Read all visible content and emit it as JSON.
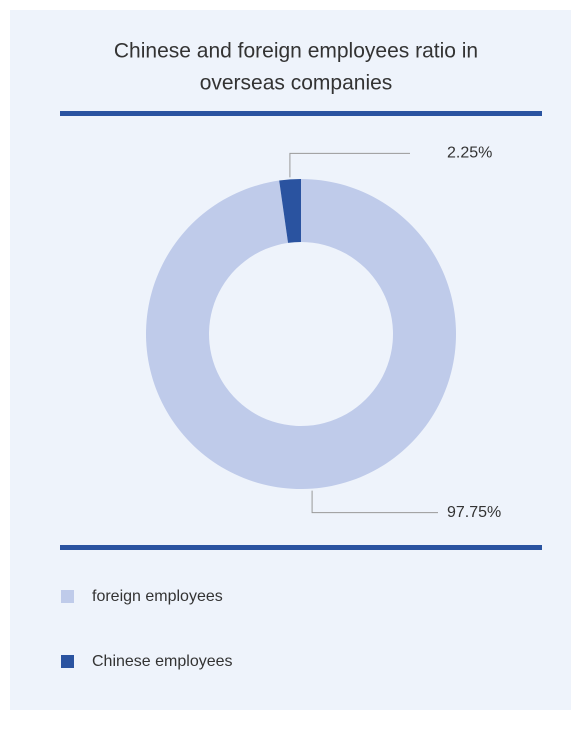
{
  "chart_data": {
    "type": "donut",
    "title": [
      "Chinese and foreign employees ratio in",
      "overseas companies"
    ],
    "categories": [
      "foreign employees",
      "Chinese employees"
    ],
    "values": [
      97.75,
      2.25
    ],
    "value_labels": [
      "97.75%",
      "2.25%"
    ],
    "colors": [
      "#bfcbea",
      "#2a53a0"
    ],
    "legend": "bottom-left"
  }
}
